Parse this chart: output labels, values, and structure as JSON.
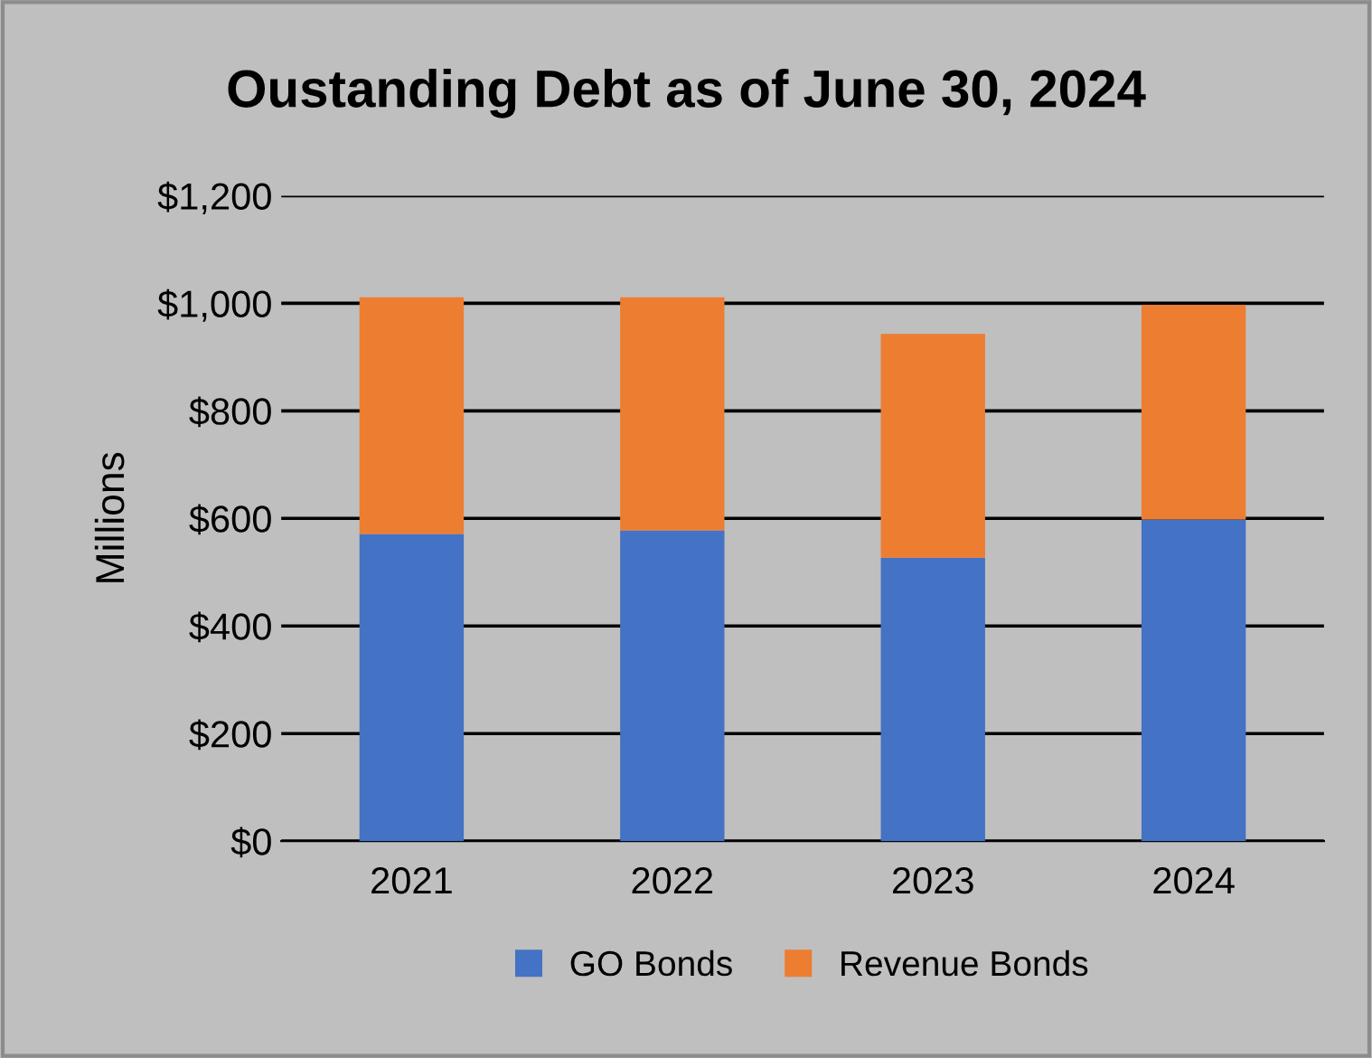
{
  "chart_data": {
    "type": "bar",
    "title": "Oustanding Debt as of June 30, 2024",
    "ylabel": "Millions",
    "categories": [
      "2021",
      "2022",
      "2023",
      "2024"
    ],
    "stacked": true,
    "series": [
      {
        "name": "GO Bonds",
        "color": "#4472c4",
        "values": [
          571,
          578,
          527,
          598
        ]
      },
      {
        "name": "Revenue Bonds",
        "color": "#ed7d31",
        "values": [
          440,
          433,
          416,
          399
        ]
      }
    ],
    "ylim": [
      0,
      1200
    ],
    "yticks": [
      {
        "value": 0,
        "label": "$0"
      },
      {
        "value": 200,
        "label": "$200"
      },
      {
        "value": 400,
        "label": "$400"
      },
      {
        "value": 600,
        "label": "$600"
      },
      {
        "value": 800,
        "label": "$800"
      },
      {
        "value": 1000,
        "label": "$1,000"
      },
      {
        "value": 1200,
        "label": "$1,200"
      }
    ],
    "grid": "y",
    "legend": "bottom"
  }
}
